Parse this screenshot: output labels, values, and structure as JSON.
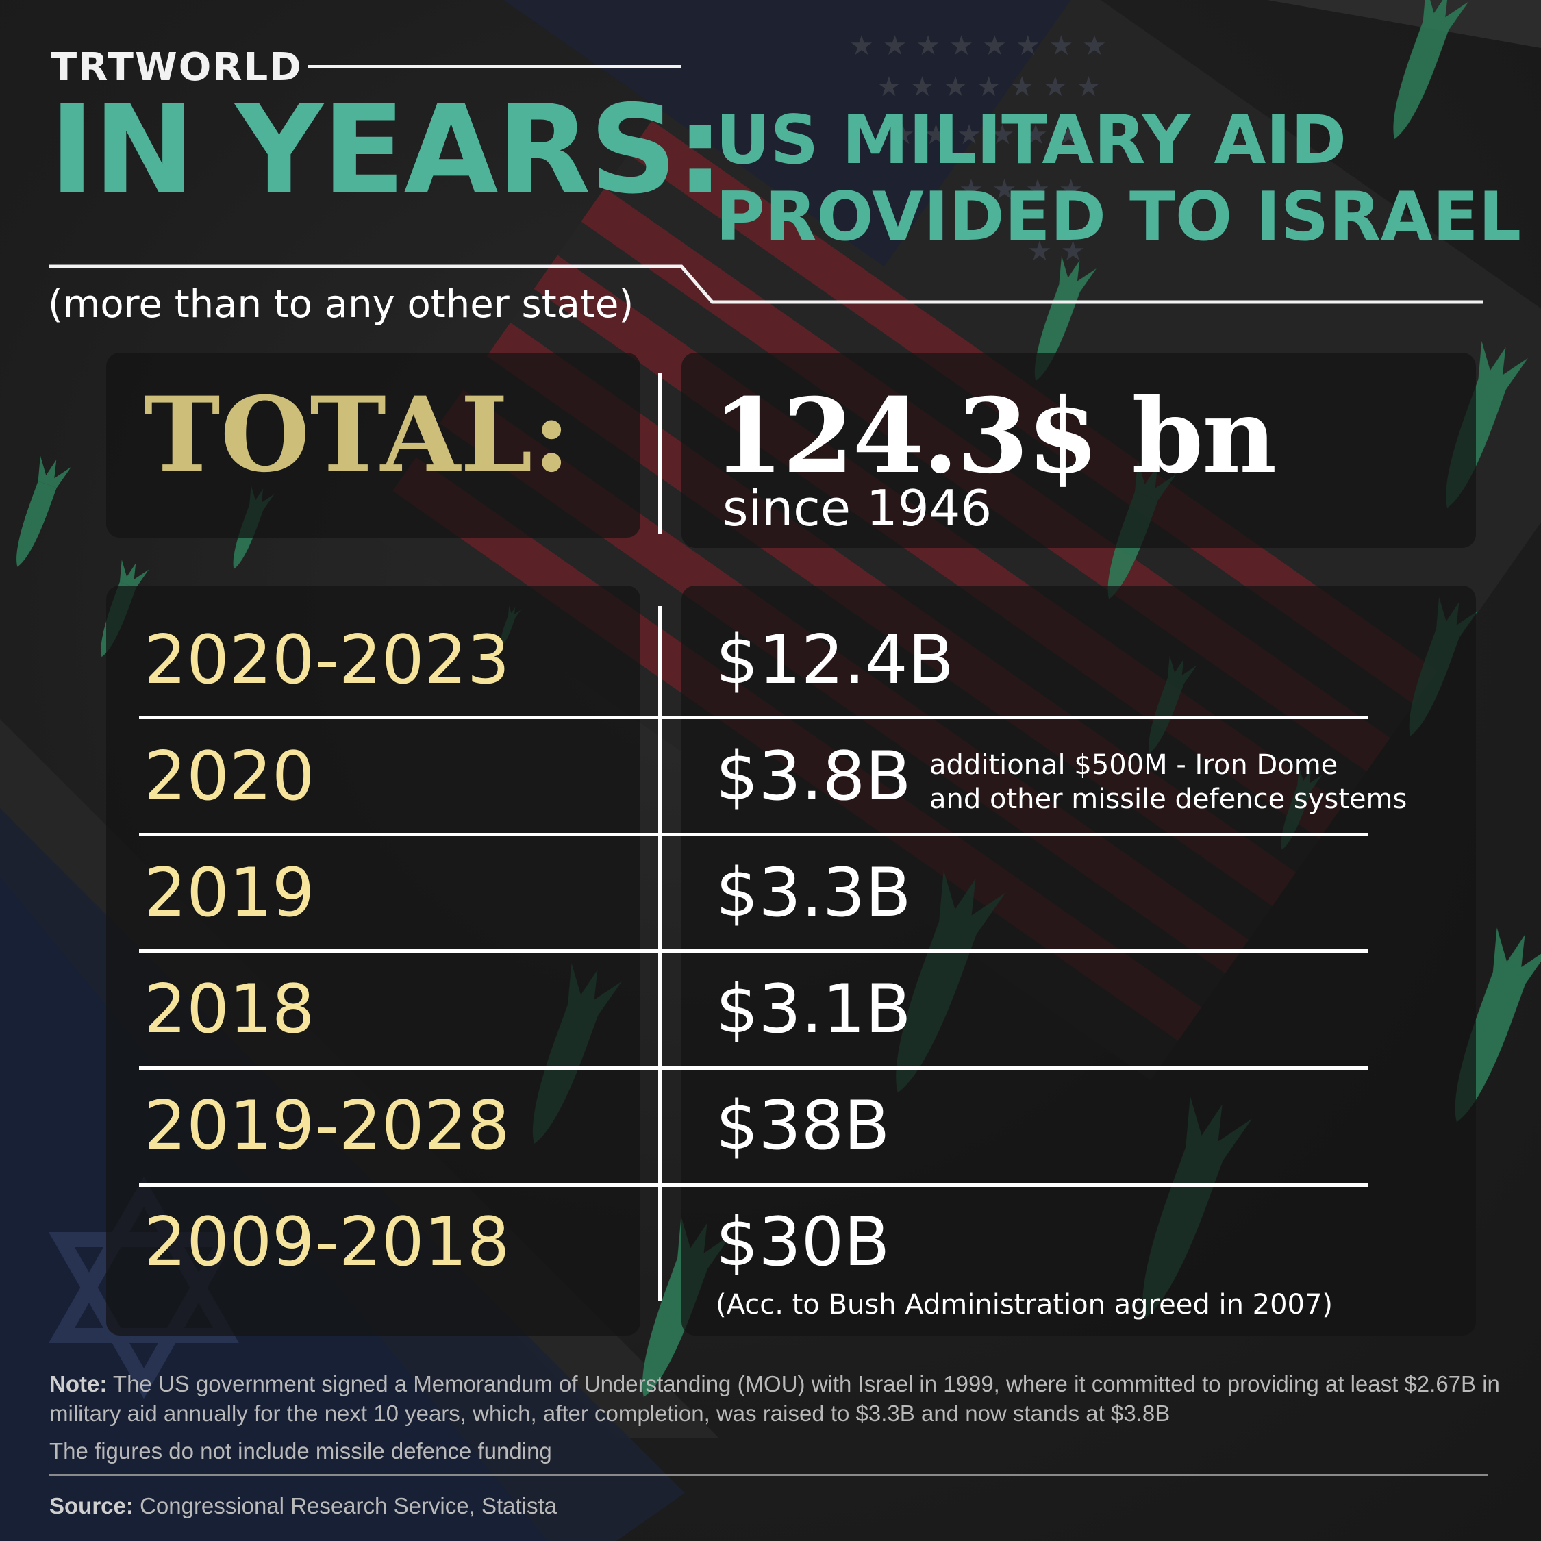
{
  "brand": {
    "logo": "TRTWORLD"
  },
  "heading": {
    "main": "IN YEARS:",
    "sub_line1": "US MILITARY AID",
    "sub_line2": "PROVIDED TO ISRAEL",
    "subtitle": "(more than to any other state)"
  },
  "total": {
    "label": "TOTAL:",
    "value": "124.3$ bn",
    "since": "since 1946"
  },
  "rows": [
    {
      "period": "2020-2023",
      "amount": "$12.4B"
    },
    {
      "period": "2020",
      "amount": "$3.8B",
      "note_line1": "additional $500M - Iron Dome",
      "note_line2": "and other missile defence systems"
    },
    {
      "period": "2019",
      "amount": "$3.3B"
    },
    {
      "period": "2018",
      "amount": "$3.1B"
    },
    {
      "period": "2019-2028",
      "amount": "$38B"
    },
    {
      "period": "2009-2018",
      "amount": "$30B",
      "note": "(Acc. to Bush Administration agreed in 2007)"
    }
  ],
  "footer": {
    "note_label": "Note:",
    "note_text": "The US government signed a Memorandum of Understanding (MOU) with Israel in 1999, where it committed to providing at least $2.67B in military aid annually for the next 10 years, which, after completion, was raised to $3.3B and now stands at $3.8B",
    "note_extra": "The figures do not include missile defence funding",
    "source_label": "Source:",
    "source_text": "Congressional Research Service, Statista"
  },
  "colors": {
    "accent_green": "#4fb39a",
    "total_gold": "#cdbf7a",
    "year_yellow": "#f6e49c",
    "missile_green": "#2f7a57",
    "flag_red": "#5a2226",
    "flag_blue": "#1f2a44"
  },
  "icons": {
    "background_us_flag": "us-flag-icon",
    "background_israel_flag": "star-of-david-icon",
    "background_missiles": "missile-icon"
  }
}
